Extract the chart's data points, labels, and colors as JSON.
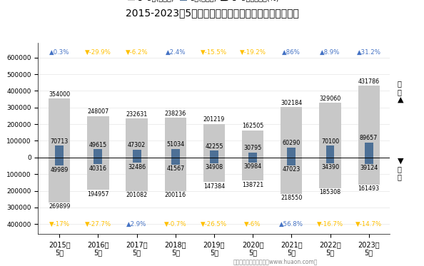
{
  "title": "2015-2023年5月河北省外商投资企业进、出口额统计图",
  "years": [
    "2015年\n5月",
    "2016年\n5月",
    "2017年\n5月",
    "2018年\n5月",
    "2019年\n5月",
    "2020年\n5月",
    "2021年\n5月",
    "2022年\n5月",
    "2023年\n5月"
  ],
  "export_1_5": [
    354000,
    248007,
    232631,
    238236,
    201219,
    162505,
    302184,
    329060,
    431786
  ],
  "export_5": [
    70713,
    49615,
    47302,
    51034,
    42255,
    30795,
    60290,
    70100,
    89657
  ],
  "import_1_5": [
    269899,
    194957,
    201082,
    200116,
    147384,
    138721,
    218550,
    185308,
    161493
  ],
  "import_5": [
    49989,
    40316,
    32486,
    41567,
    34908,
    30984,
    47023,
    34390,
    39124
  ],
  "export_growth": [
    "▲0.3%",
    "▼-29.9%",
    "▼-6.2%",
    "▲2.4%",
    "▼-15.5%",
    "▼-19.2%",
    "▲86%",
    "▲8.9%",
    "▲31.2%"
  ],
  "import_growth": [
    "▼-17%",
    "▼-27.7%",
    "▲2.9%",
    "▼-0.7%",
    "▼-26.5%",
    "▼-6%",
    "▲56.8%",
    "▼-16.7%",
    "▼-14.7%"
  ],
  "export_growth_up": [
    true,
    false,
    false,
    true,
    false,
    false,
    true,
    true,
    true
  ],
  "import_growth_up": [
    false,
    false,
    true,
    false,
    false,
    false,
    true,
    false,
    false
  ],
  "color_bar_1_5": "#c8c8c8",
  "color_bar_5": "#4d7096",
  "color_up": "#4472c4",
  "color_down": "#ffc000",
  "footer": "制图：华经产业研究院（www.huaon.com）",
  "yticks_pos": [
    0,
    100000,
    200000,
    300000,
    400000,
    500000,
    600000
  ],
  "yticks_neg": [
    -100000,
    -200000,
    -300000,
    -400000
  ],
  "ymin": -460000,
  "ymax": 690000
}
